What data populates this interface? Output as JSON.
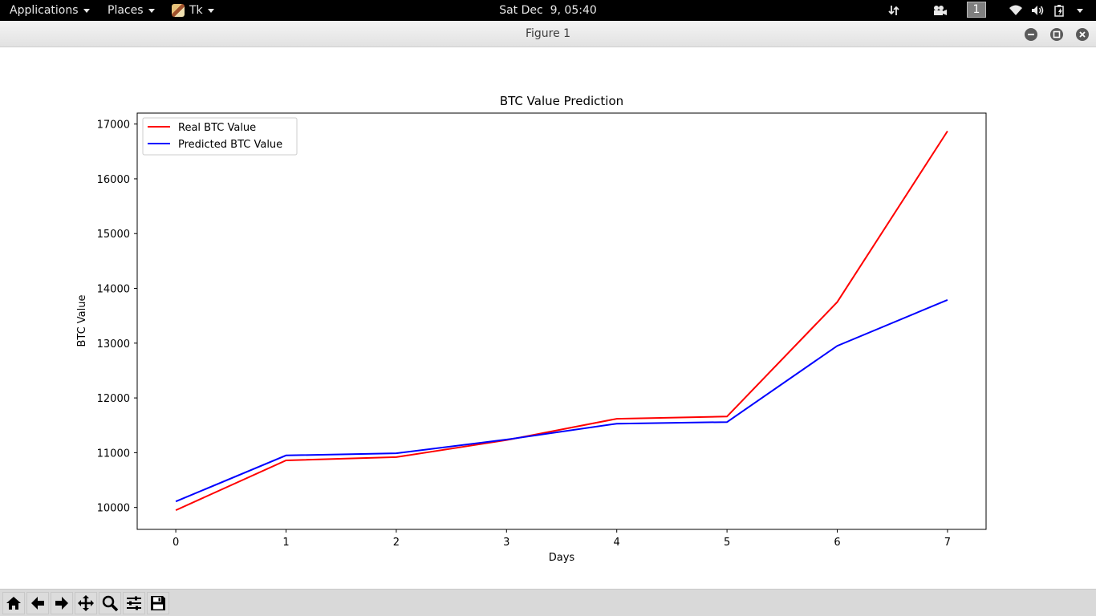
{
  "topbar": {
    "applications": "Applications",
    "places": "Places",
    "app": "Tk",
    "clock": "Sat Dec  9, 05:40",
    "workspace": "1"
  },
  "window": {
    "title": "Figure 1"
  },
  "chart_data": {
    "type": "line",
    "title": "BTC Value Prediction",
    "xlabel": "Days",
    "ylabel": "BTC Value",
    "x": [
      0,
      1,
      2,
      3,
      4,
      5,
      6,
      7
    ],
    "xticks": [
      "0",
      "1",
      "2",
      "3",
      "4",
      "5",
      "6",
      "7"
    ],
    "yticks": [
      "10000",
      "11000",
      "12000",
      "13000",
      "14000",
      "15000",
      "16000",
      "17000"
    ],
    "xlim": [
      -0.35,
      7.35
    ],
    "ylim": [
      9600,
      17200
    ],
    "grid": false,
    "legend_position": "top-left",
    "series": [
      {
        "name": "Real BTC Value",
        "color": "#ff0000",
        "values": [
          9950,
          10860,
          10920,
          11230,
          11620,
          11660,
          13750,
          16870
        ]
      },
      {
        "name": "Predicted BTC Value",
        "color": "#0000ff",
        "values": [
          10110,
          10950,
          10990,
          11240,
          11530,
          11560,
          12950,
          13790
        ]
      }
    ]
  },
  "toolbar": {
    "tools": [
      "home-icon",
      "back-icon",
      "forward-icon",
      "pan-icon",
      "zoom-icon",
      "configure-subplots-icon",
      "save-icon"
    ]
  }
}
